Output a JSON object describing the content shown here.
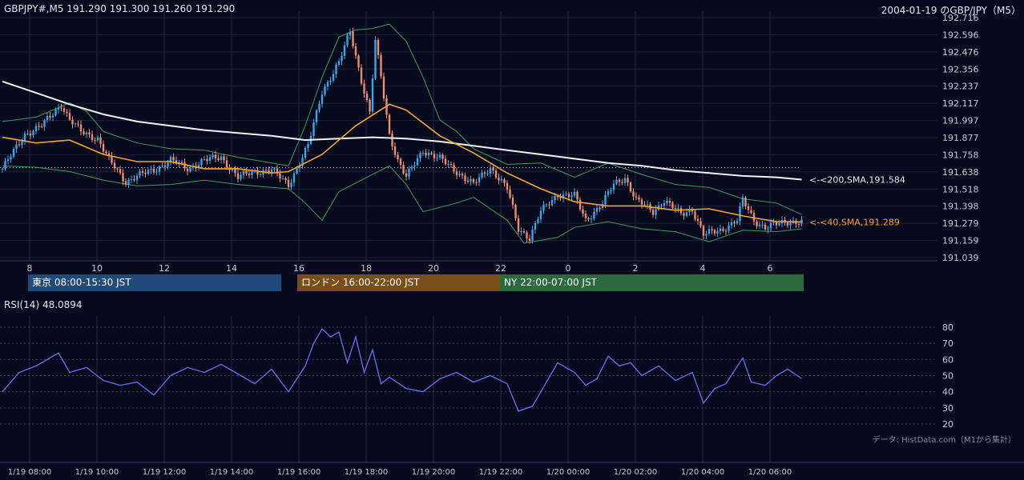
{
  "header": {
    "symbol_ohlc": "GBPJPY#,M5 191.290 191.300 191.260 191.290",
    "right_title": "2004-01-19 のGBP/JPY（M5）"
  },
  "sessions": [
    {
      "label": "東京 08:00-15:30 JST",
      "color": "#1f4a7a"
    },
    {
      "label": "ロンドン 16:00-22:00 JST",
      "color": "#7a4f17"
    },
    {
      "label": "NY 22:00-07:00 JST",
      "color": "#2a6a3c"
    }
  ],
  "rsi_title": "RSI(14) 48.0894",
  "credit": "データ: HistData.com（M1から集計）",
  "colors": {
    "up": "#35a8e8",
    "down": "#f08c6e",
    "sma40": "#f5a431",
    "sma200": "#f0f0f0",
    "band": "#3f9b5a",
    "rsi": "#6a6ef0"
  },
  "chart_data": [
    {
      "type": "candlestick",
      "y_ticks": [
        "192.716",
        "192.596",
        "192.476",
        "192.356",
        "192.237",
        "192.117",
        "191.997",
        "191.877",
        "191.758",
        "191.638",
        "191.518",
        "191.398",
        "191.279",
        "191.159",
        "191.039"
      ],
      "ylim": [
        191.039,
        192.716
      ],
      "x_ticks": [
        "8",
        "10",
        "12",
        "14",
        "16",
        "18",
        "20",
        "22",
        "0",
        "2",
        "4",
        "6"
      ],
      "price_path": [
        [
          "07:00",
          191.66
        ],
        [
          "07:40",
          191.9
        ],
        [
          "08:10",
          191.96
        ],
        [
          "08:45",
          192.11
        ],
        [
          "09:00",
          192.0
        ],
        [
          "09:20",
          191.92
        ],
        [
          "09:50",
          191.87
        ],
        [
          "10:10",
          191.72
        ],
        [
          "10:40",
          191.57
        ],
        [
          "11:00",
          191.61
        ],
        [
          "11:30",
          191.65
        ],
        [
          "12:00",
          191.72
        ],
        [
          "12:30",
          191.66
        ],
        [
          "13:00",
          191.72
        ],
        [
          "13:30",
          191.74
        ],
        [
          "14:00",
          191.6
        ],
        [
          "14:30",
          191.64
        ],
        [
          "15:00",
          191.65
        ],
        [
          "15:30",
          191.55
        ],
        [
          "15:50",
          191.7
        ],
        [
          "16:05",
          191.82
        ],
        [
          "16:30",
          192.2
        ],
        [
          "17:00",
          192.4
        ],
        [
          "17:20",
          192.62
        ],
        [
          "17:40",
          192.28
        ],
        [
          "17:55",
          192.05
        ],
        [
          "18:05",
          192.55
        ],
        [
          "18:15",
          192.3
        ],
        [
          "18:30",
          191.9
        ],
        [
          "18:45",
          191.72
        ],
        [
          "19:00",
          191.6
        ],
        [
          "19:30",
          191.79
        ],
        [
          "20:00",
          191.73
        ],
        [
          "20:30",
          191.64
        ],
        [
          "21:00",
          191.55
        ],
        [
          "21:30",
          191.67
        ],
        [
          "22:00",
          191.52
        ],
        [
          "22:20",
          191.24
        ],
        [
          "22:40",
          191.18
        ],
        [
          "23:00",
          191.36
        ],
        [
          "23:30",
          191.48
        ],
        [
          "00:00",
          191.47
        ],
        [
          "00:20",
          191.3
        ],
        [
          "00:50",
          191.42
        ],
        [
          "01:10",
          191.55
        ],
        [
          "01:30",
          191.6
        ],
        [
          "01:50",
          191.44
        ],
        [
          "02:20",
          191.36
        ],
        [
          "02:40",
          191.44
        ],
        [
          "03:10",
          191.34
        ],
        [
          "03:30",
          191.38
        ],
        [
          "03:50",
          191.2
        ],
        [
          "04:20",
          191.23
        ],
        [
          "04:50",
          191.3
        ],
        [
          "05:00",
          191.44
        ],
        [
          "05:20",
          191.3
        ],
        [
          "05:40",
          191.25
        ],
        [
          "06:20",
          191.29
        ],
        [
          "06:45",
          191.29
        ]
      ],
      "sma40_label": "<-<40,SMA,191.289",
      "sma40_path": [
        [
          "07:00",
          191.88
        ],
        [
          "08:00",
          191.84
        ],
        [
          "09:00",
          191.86
        ],
        [
          "10:00",
          191.76
        ],
        [
          "11:00",
          191.71
        ],
        [
          "12:00",
          191.71
        ],
        [
          "13:00",
          191.66
        ],
        [
          "14:00",
          191.66
        ],
        [
          "15:00",
          191.63
        ],
        [
          "15:30",
          191.64
        ],
        [
          "16:30",
          191.76
        ],
        [
          "17:30",
          191.96
        ],
        [
          "18:30",
          192.11
        ],
        [
          "19:00",
          192.07
        ],
        [
          "20:00",
          191.89
        ],
        [
          "21:00",
          191.77
        ],
        [
          "22:00",
          191.63
        ],
        [
          "23:00",
          191.52
        ],
        [
          "00:00",
          191.43
        ],
        [
          "01:00",
          191.4
        ],
        [
          "02:00",
          191.4
        ],
        [
          "03:00",
          191.37
        ],
        [
          "04:00",
          191.38
        ],
        [
          "05:00",
          191.33
        ],
        [
          "06:00",
          191.29
        ],
        [
          "06:45",
          191.289
        ]
      ],
      "sma200_label": "<-<200,SMA,191.584",
      "sma200_path": [
        [
          "07:00",
          192.27
        ],
        [
          "08:00",
          192.19
        ],
        [
          "09:00",
          192.11
        ],
        [
          "10:00",
          192.04
        ],
        [
          "11:00",
          191.99
        ],
        [
          "12:00",
          191.96
        ],
        [
          "13:00",
          191.93
        ],
        [
          "14:00",
          191.91
        ],
        [
          "15:00",
          191.89
        ],
        [
          "16:00",
          191.86
        ],
        [
          "17:00",
          191.87
        ],
        [
          "18:00",
          191.88
        ],
        [
          "19:00",
          191.87
        ],
        [
          "20:00",
          191.85
        ],
        [
          "21:00",
          191.82
        ],
        [
          "22:00",
          191.79
        ],
        [
          "23:00",
          191.76
        ],
        [
          "00:00",
          191.73
        ],
        [
          "01:00",
          191.7
        ],
        [
          "02:00",
          191.68
        ],
        [
          "03:00",
          191.65
        ],
        [
          "04:00",
          191.63
        ],
        [
          "05:00",
          191.61
        ],
        [
          "06:00",
          191.6
        ],
        [
          "06:45",
          191.584
        ]
      ],
      "upper_band_path": [
        [
          "07:00",
          191.99
        ],
        [
          "08:00",
          192.02
        ],
        [
          "09:00",
          192.12
        ],
        [
          "09:30",
          192.06
        ],
        [
          "10:00",
          191.92
        ],
        [
          "11:00",
          191.84
        ],
        [
          "12:00",
          191.8
        ],
        [
          "13:00",
          191.79
        ],
        [
          "14:00",
          191.74
        ],
        [
          "15:00",
          191.7
        ],
        [
          "15:30",
          191.68
        ],
        [
          "16:00",
          191.96
        ],
        [
          "16:30",
          192.3
        ],
        [
          "17:00",
          192.58
        ],
        [
          "17:30",
          192.63
        ],
        [
          "18:00",
          192.64
        ],
        [
          "18:30",
          192.67
        ],
        [
          "19:00",
          192.55
        ],
        [
          "19:30",
          192.3
        ],
        [
          "20:00",
          192.0
        ],
        [
          "20:30",
          191.92
        ],
        [
          "21:00",
          191.8
        ],
        [
          "22:00",
          191.69
        ],
        [
          "23:00",
          191.7
        ],
        [
          "00:00",
          191.6
        ],
        [
          "01:00",
          191.7
        ],
        [
          "02:00",
          191.62
        ],
        [
          "03:00",
          191.55
        ],
        [
          "04:00",
          191.53
        ],
        [
          "05:00",
          191.45
        ],
        [
          "06:00",
          191.42
        ],
        [
          "06:45",
          191.34
        ]
      ],
      "lower_band_path": [
        [
          "07:00",
          191.68
        ],
        [
          "08:00",
          191.67
        ],
        [
          "09:00",
          191.64
        ],
        [
          "10:00",
          191.58
        ],
        [
          "11:00",
          191.54
        ],
        [
          "12:00",
          191.55
        ],
        [
          "13:00",
          191.58
        ],
        [
          "14:00",
          191.55
        ],
        [
          "15:00",
          191.53
        ],
        [
          "15:30",
          191.52
        ],
        [
          "16:00",
          191.42
        ],
        [
          "16:30",
          191.3
        ],
        [
          "17:00",
          191.5
        ],
        [
          "18:00",
          191.62
        ],
        [
          "18:30",
          191.68
        ],
        [
          "19:00",
          191.55
        ],
        [
          "19:30",
          191.36
        ],
        [
          "20:00",
          191.39
        ],
        [
          "20:30",
          191.42
        ],
        [
          "21:00",
          191.46
        ],
        [
          "22:00",
          191.3
        ],
        [
          "22:30",
          191.14
        ],
        [
          "23:30",
          191.18
        ],
        [
          "00:00",
          191.25
        ],
        [
          "01:00",
          191.29
        ],
        [
          "02:00",
          191.24
        ],
        [
          "03:00",
          191.22
        ],
        [
          "04:00",
          191.15
        ],
        [
          "05:00",
          191.23
        ],
        [
          "06:00",
          191.22
        ],
        [
          "06:45",
          191.24
        ]
      ],
      "last_price_guide": 191.667
    },
    {
      "type": "line",
      "series_label": "RSI(14) 48.0894",
      "ylim": [
        20,
        80
      ],
      "y_ticks": [
        "80",
        "70",
        "60",
        "50",
        "40",
        "30",
        "20"
      ],
      "x_ticks": [
        "1/19 08:00",
        "1/19 10:00",
        "1/19 12:00",
        "1/19 14:00",
        "1/19 16:00",
        "1/19 18:00",
        "1/19 20:00",
        "1/19 22:00",
        "1/20 00:00",
        "1/20 02:00",
        "1/20 04:00",
        "1/20 06:00"
      ],
      "rsi_path": [
        [
          "07:00",
          40
        ],
        [
          "07:30",
          52
        ],
        [
          "08:00",
          56
        ],
        [
          "08:40",
          64
        ],
        [
          "09:00",
          52
        ],
        [
          "09:30",
          55
        ],
        [
          "10:00",
          47
        ],
        [
          "10:30",
          44
        ],
        [
          "11:00",
          46
        ],
        [
          "11:30",
          38
        ],
        [
          "12:00",
          50
        ],
        [
          "12:30",
          55
        ],
        [
          "13:00",
          52
        ],
        [
          "13:30",
          57
        ],
        [
          "14:00",
          51
        ],
        [
          "14:30",
          45
        ],
        [
          "15:00",
          54
        ],
        [
          "15:30",
          40
        ],
        [
          "16:00",
          56
        ],
        [
          "16:15",
          70
        ],
        [
          "16:30",
          79
        ],
        [
          "16:45",
          74
        ],
        [
          "17:00",
          77
        ],
        [
          "17:15",
          58
        ],
        [
          "17:30",
          74
        ],
        [
          "17:45",
          52
        ],
        [
          "18:00",
          66
        ],
        [
          "18:15",
          45
        ],
        [
          "18:30",
          49
        ],
        [
          "19:00",
          42
        ],
        [
          "19:30",
          40
        ],
        [
          "20:00",
          48
        ],
        [
          "20:30",
          52
        ],
        [
          "21:00",
          46
        ],
        [
          "21:30",
          50
        ],
        [
          "22:00",
          45
        ],
        [
          "22:20",
          28
        ],
        [
          "22:45",
          31
        ],
        [
          "23:00",
          40
        ],
        [
          "23:30",
          58
        ],
        [
          "00:00",
          52
        ],
        [
          "00:20",
          44
        ],
        [
          "00:40",
          48
        ],
        [
          "01:00",
          62
        ],
        [
          "01:20",
          56
        ],
        [
          "01:40",
          58
        ],
        [
          "02:00",
          50
        ],
        [
          "02:30",
          56
        ],
        [
          "03:00",
          47
        ],
        [
          "03:30",
          52
        ],
        [
          "03:50",
          33
        ],
        [
          "04:10",
          42
        ],
        [
          "04:30",
          45
        ],
        [
          "05:00",
          61
        ],
        [
          "05:15",
          46
        ],
        [
          "05:40",
          44
        ],
        [
          "06:00",
          50
        ],
        [
          "06:20",
          54
        ],
        [
          "06:45",
          48.0894
        ]
      ]
    }
  ]
}
